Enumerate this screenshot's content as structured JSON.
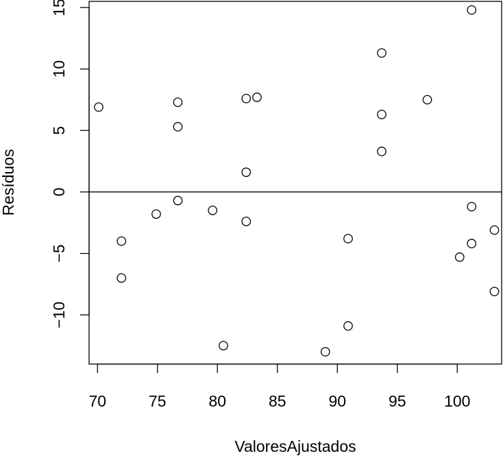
{
  "chart_data": {
    "type": "scatter",
    "title": "",
    "xlabel": "ValoresAjustados",
    "ylabel": "Resíduos",
    "xlim": [
      69.3,
      103.7
    ],
    "ylim": [
      -14.0,
      15.5
    ],
    "xticks": [
      70,
      75,
      80,
      85,
      90,
      95,
      100
    ],
    "xtick_labels": [
      "70",
      "75",
      "80",
      "85",
      "90",
      "95",
      "100"
    ],
    "yticks": [
      -10,
      -5,
      0,
      5,
      10,
      15
    ],
    "ytick_labels": [
      "−10",
      "−5",
      "0",
      "5",
      "10",
      "15"
    ],
    "hline": 0,
    "grid": false,
    "legend": "none",
    "points": [
      {
        "x": 70.1,
        "y": 6.9
      },
      {
        "x": 72.0,
        "y": -4.0
      },
      {
        "x": 72.0,
        "y": -7.0
      },
      {
        "x": 74.9,
        "y": -1.8
      },
      {
        "x": 76.7,
        "y": 7.3
      },
      {
        "x": 76.7,
        "y": 5.3
      },
      {
        "x": 76.7,
        "y": -0.7
      },
      {
        "x": 79.6,
        "y": -1.5
      },
      {
        "x": 80.5,
        "y": -12.5
      },
      {
        "x": 82.4,
        "y": 7.6
      },
      {
        "x": 82.4,
        "y": 1.6
      },
      {
        "x": 82.4,
        "y": -2.4
      },
      {
        "x": 83.3,
        "y": 7.7
      },
      {
        "x": 89.0,
        "y": -13.0
      },
      {
        "x": 90.9,
        "y": -3.8
      },
      {
        "x": 90.9,
        "y": -10.9
      },
      {
        "x": 93.7,
        "y": 11.3
      },
      {
        "x": 93.7,
        "y": 6.3
      },
      {
        "x": 93.7,
        "y": 3.3
      },
      {
        "x": 97.5,
        "y": 7.5
      },
      {
        "x": 100.2,
        "y": -5.3
      },
      {
        "x": 101.2,
        "y": 14.8
      },
      {
        "x": 101.2,
        "y": -1.2
      },
      {
        "x": 101.2,
        "y": -4.2
      },
      {
        "x": 103.1,
        "y": -3.1
      },
      {
        "x": 103.1,
        "y": -8.1
      }
    ]
  }
}
